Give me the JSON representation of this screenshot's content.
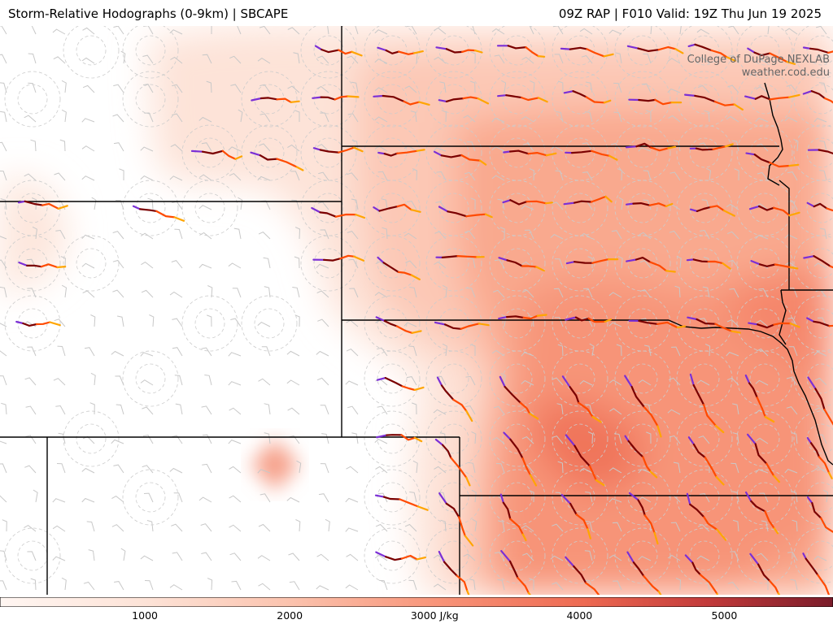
{
  "header": {
    "title_left": "Storm-Relative Hodographs (0-9km) | SBCAPE",
    "title_right": "09Z RAP | F010 Valid: 19Z Thu Jun 19 2025"
  },
  "credit": {
    "line1": "College of DuPage NEXLAB",
    "line2": "weather.cod.edu"
  },
  "colors": {
    "hodo_low": "#7b2fd6",
    "hodo_mid": "#7a0000",
    "hodo_upper": "#ff4a00",
    "hodo_top": "#ffa500",
    "border": "#000000",
    "range_ring": "#cccccc",
    "barb": "#c8c8c8"
  },
  "colorbar": {
    "min": 0,
    "max": 5750,
    "labels": [
      {
        "value": 1000,
        "text": "1000"
      },
      {
        "value": 2000,
        "text": "2000"
      },
      {
        "value": 3000,
        "text": "3000 J/kg"
      },
      {
        "value": 4000,
        "text": "4000"
      },
      {
        "value": 5000,
        "text": "5000"
      }
    ]
  }
}
